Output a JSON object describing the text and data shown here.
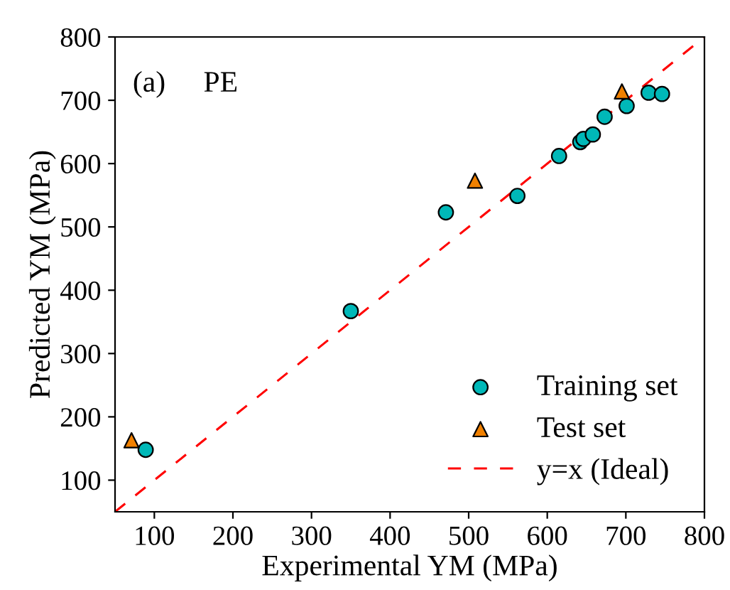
{
  "chart_data": {
    "type": "scatter",
    "xlabel": "Experimental YM (MPa)",
    "ylabel": "Predicted YM (MPa)",
    "annotations": [
      "(a)",
      "PE"
    ],
    "xlim": [
      50,
      800
    ],
    "ylim": [
      50,
      800
    ],
    "xticks": [
      100,
      200,
      300,
      400,
      500,
      600,
      700,
      800
    ],
    "yticks": [
      100,
      200,
      300,
      400,
      500,
      600,
      700,
      800
    ],
    "grid": false,
    "legend": "bottom right",
    "series": [
      {
        "name": "Training set",
        "marker": "circle",
        "color": "#00b8b8",
        "x": [
          89,
          350,
          471,
          562,
          615,
          642,
          646,
          658,
          673,
          701,
          729,
          746
        ],
        "values": [
          148,
          367,
          523,
          549,
          612,
          634,
          639,
          646,
          674,
          691,
          712,
          710
        ]
      },
      {
        "name": "Test set",
        "marker": "triangle",
        "color": "#f08000",
        "x": [
          71,
          508,
          695
        ],
        "values": [
          163,
          573,
          714
        ]
      },
      {
        "name": "y=x (Ideal)",
        "type": "line",
        "line_style": "dashed",
        "marker": "none",
        "color": "#ff0000",
        "x": [
          50,
          800
        ],
        "values": [
          50,
          800
        ]
      }
    ]
  }
}
